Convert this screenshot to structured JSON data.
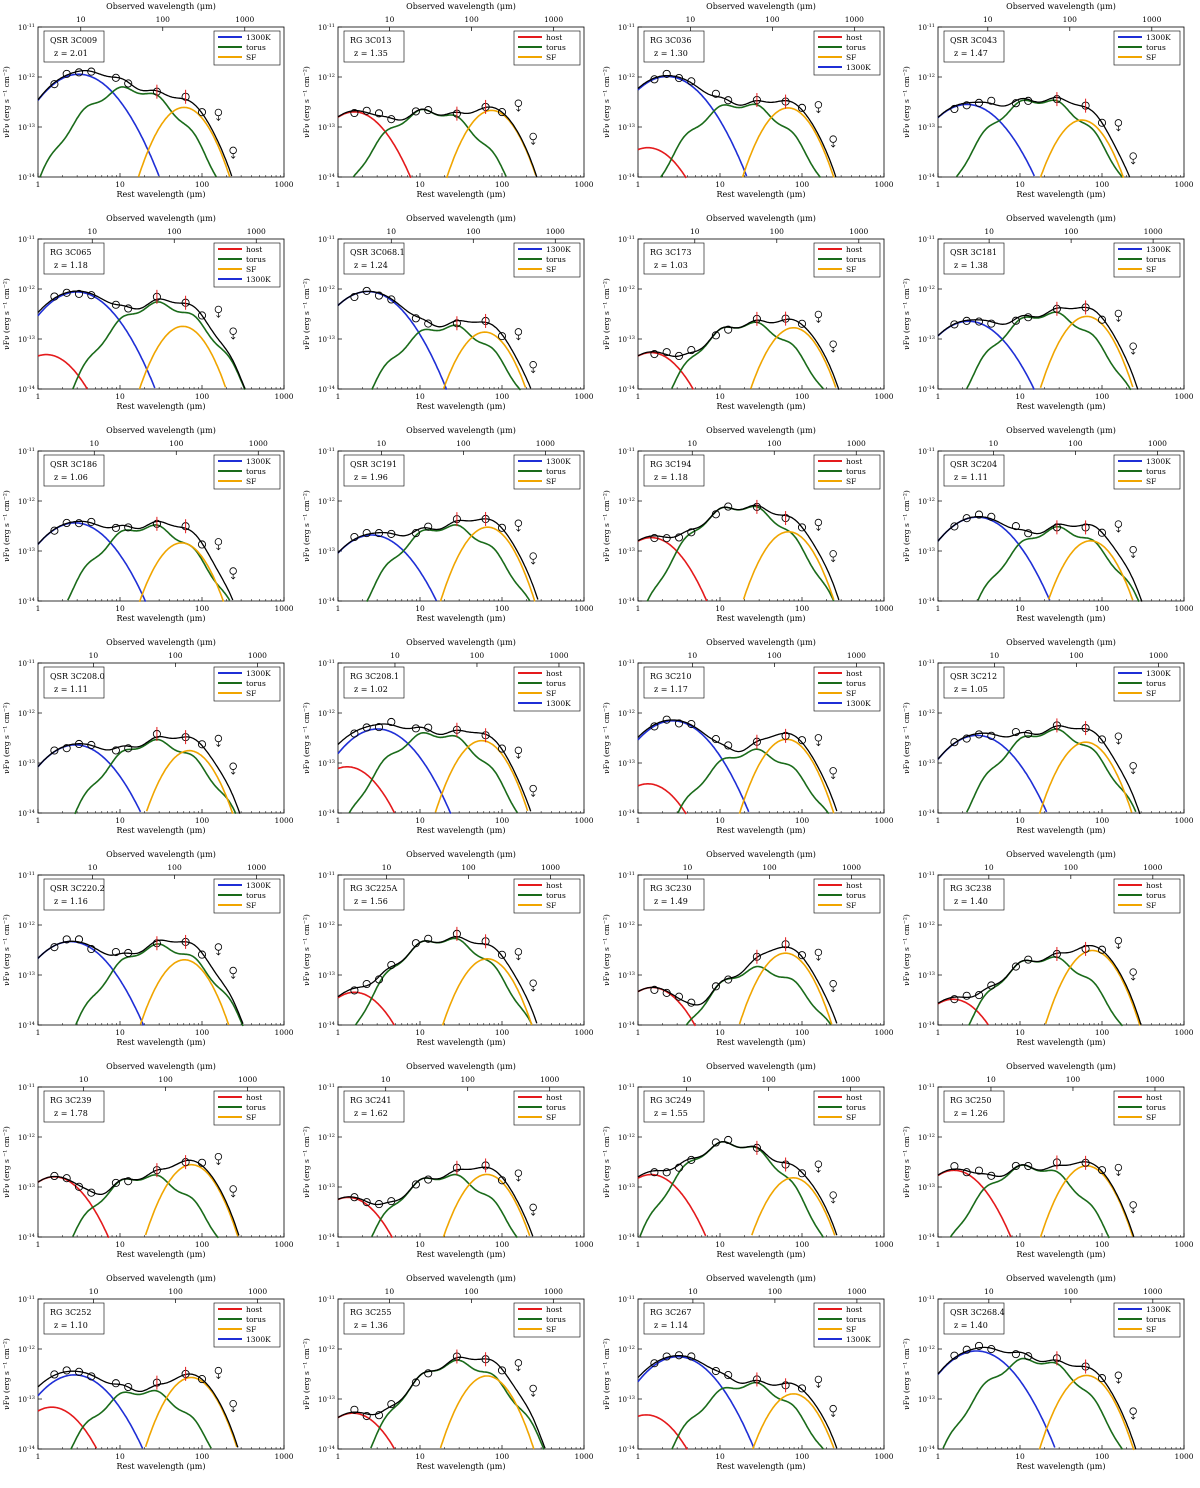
{
  "common": {
    "x_axis_top_label": "Observed wavelength (μm)",
    "x_axis_bottom_label": "Rest wavelength (μm)",
    "y_axis_label": "νF",
    "y_axis_label_sub": "ν",
    "y_axis_label_units": " (erg s",
    "y_axis_label_units2": " cm",
    "y_axis_label_close": ")",
    "rest_ticks": [
      "1",
      "10",
      "100",
      "1000"
    ],
    "obs_ticks": [
      "10",
      "100",
      "1000"
    ],
    "y_tick_base": "10",
    "y_tick_exps": [
      "-11",
      "-12",
      "-13",
      "-14"
    ],
    "colors": {
      "host": "#e41a1c",
      "torus": "#1a6b1a",
      "SF": "#f0a500",
      "1300K": "#1f2fd6",
      "total": "#000000",
      "data": "#000000",
      "data_highlight": "#e41a1c"
    }
  },
  "chart_data": [
    {
      "type": "line",
      "object": "QSR 3C009",
      "z": "z = 2.01",
      "legend": [
        "1300K",
        "torus",
        "SF"
      ],
      "xlim": [
        1,
        1000
      ],
      "ylim": [
        1e-14,
        1e-11
      ]
    },
    {
      "type": "line",
      "object": "RG 3C013",
      "z": "z = 1.35",
      "legend": [
        "host",
        "torus",
        "SF"
      ],
      "xlim": [
        1,
        1000
      ],
      "ylim": [
        1e-14,
        1e-11
      ]
    },
    {
      "type": "line",
      "object": "RG 3C036",
      "z": "z = 1.30",
      "legend": [
        "host",
        "torus",
        "SF",
        "1300K"
      ],
      "xlim": [
        1,
        1000
      ],
      "ylim": [
        1e-14,
        1e-11
      ]
    },
    {
      "type": "line",
      "object": "QSR 3C043",
      "z": "z = 1.47",
      "legend": [
        "1300K",
        "torus",
        "SF"
      ],
      "xlim": [
        1,
        1000
      ],
      "ylim": [
        1e-14,
        1e-11
      ]
    },
    {
      "type": "line",
      "object": "RG 3C065",
      "z": "z = 1.18",
      "legend": [
        "host",
        "torus",
        "SF",
        "1300K"
      ],
      "xlim": [
        1,
        1000
      ],
      "ylim": [
        1e-14,
        1e-11
      ]
    },
    {
      "type": "line",
      "object": "QSR 3C068.1",
      "z": "z = 1.24",
      "legend": [
        "1300K",
        "torus",
        "SF"
      ],
      "xlim": [
        1,
        1000
      ],
      "ylim": [
        1e-14,
        1e-11
      ]
    },
    {
      "type": "line",
      "object": "RG 3C173",
      "z": "z = 1.03",
      "legend": [
        "host",
        "torus",
        "SF"
      ],
      "xlim": [
        1,
        1000
      ],
      "ylim": [
        1e-14,
        1e-11
      ]
    },
    {
      "type": "line",
      "object": "QSR 3C181",
      "z": "z = 1.38",
      "legend": [
        "1300K",
        "torus",
        "SF"
      ],
      "xlim": [
        1,
        1000
      ],
      "ylim": [
        1e-14,
        1e-11
      ]
    },
    {
      "type": "line",
      "object": "QSR 3C186",
      "z": "z = 1.06",
      "legend": [
        "1300K",
        "torus",
        "SF"
      ],
      "xlim": [
        1,
        1000
      ],
      "ylim": [
        1e-14,
        1e-11
      ]
    },
    {
      "type": "line",
      "object": "QSR 3C191",
      "z": "z = 1.96",
      "legend": [
        "1300K",
        "torus",
        "SF"
      ],
      "xlim": [
        1,
        1000
      ],
      "ylim": [
        1e-14,
        1e-11
      ]
    },
    {
      "type": "line",
      "object": "RG 3C194",
      "z": "z = 1.18",
      "legend": [
        "host",
        "torus",
        "SF"
      ],
      "xlim": [
        1,
        1000
      ],
      "ylim": [
        1e-14,
        1e-11
      ]
    },
    {
      "type": "line",
      "object": "QSR 3C204",
      "z": "z = 1.11",
      "legend": [
        "1300K",
        "torus",
        "SF"
      ],
      "xlim": [
        1,
        1000
      ],
      "ylim": [
        1e-14,
        1e-11
      ]
    },
    {
      "type": "line",
      "object": "QSR 3C208.0",
      "z": "z = 1.11",
      "legend": [
        "1300K",
        "torus",
        "SF"
      ],
      "xlim": [
        1,
        1000
      ],
      "ylim": [
        1e-14,
        1e-11
      ]
    },
    {
      "type": "line",
      "object": "RG 3C208.1",
      "z": "z = 1.02",
      "legend": [
        "host",
        "torus",
        "SF",
        "1300K"
      ],
      "xlim": [
        1,
        1000
      ],
      "ylim": [
        1e-14,
        1e-11
      ]
    },
    {
      "type": "line",
      "object": "RG 3C210",
      "z": "z = 1.17",
      "legend": [
        "host",
        "torus",
        "SF",
        "1300K"
      ],
      "xlim": [
        1,
        1000
      ],
      "ylim": [
        1e-14,
        1e-11
      ]
    },
    {
      "type": "line",
      "object": "QSR 3C212",
      "z": "z = 1.05",
      "legend": [
        "1300K",
        "torus",
        "SF"
      ],
      "xlim": [
        1,
        1000
      ],
      "ylim": [
        1e-14,
        1e-11
      ]
    },
    {
      "type": "line",
      "object": "QSR 3C220.2",
      "z": "z = 1.16",
      "legend": [
        "1300K",
        "torus",
        "SF"
      ],
      "xlim": [
        1,
        1000
      ],
      "ylim": [
        1e-14,
        1e-11
      ]
    },
    {
      "type": "line",
      "object": "RG 3C225A",
      "z": "z = 1.56",
      "legend": [
        "host",
        "torus",
        "SF"
      ],
      "xlim": [
        1,
        1000
      ],
      "ylim": [
        1e-14,
        1e-11
      ]
    },
    {
      "type": "line",
      "object": "RG 3C230",
      "z": "z = 1.49",
      "legend": [
        "host",
        "torus",
        "SF"
      ],
      "xlim": [
        1,
        1000
      ],
      "ylim": [
        1e-14,
        1e-11
      ]
    },
    {
      "type": "line",
      "object": "RG 3C238",
      "z": "z = 1.40",
      "legend": [
        "host",
        "torus",
        "SF"
      ],
      "xlim": [
        1,
        1000
      ],
      "ylim": [
        1e-14,
        1e-11
      ]
    },
    {
      "type": "line",
      "object": "RG 3C239",
      "z": "z = 1.78",
      "legend": [
        "host",
        "torus",
        "SF"
      ],
      "xlim": [
        1,
        1000
      ],
      "ylim": [
        1e-14,
        1e-11
      ]
    },
    {
      "type": "line",
      "object": "RG 3C241",
      "z": "z = 1.62",
      "legend": [
        "host",
        "torus",
        "SF"
      ],
      "xlim": [
        1,
        1000
      ],
      "ylim": [
        1e-14,
        1e-11
      ]
    },
    {
      "type": "line",
      "object": "RG 3C249",
      "z": "z = 1.55",
      "legend": [
        "host",
        "torus",
        "SF"
      ],
      "xlim": [
        1,
        1000
      ],
      "ylim": [
        1e-14,
        1e-11
      ]
    },
    {
      "type": "line",
      "object": "RG 3C250",
      "z": "z = 1.26",
      "legend": [
        "host",
        "torus",
        "SF"
      ],
      "xlim": [
        1,
        1000
      ],
      "ylim": [
        1e-14,
        1e-11
      ]
    },
    {
      "type": "line",
      "object": "RG 3C252",
      "z": "z = 1.10",
      "legend": [
        "host",
        "torus",
        "SF",
        "1300K"
      ],
      "xlim": [
        1,
        1000
      ],
      "ylim": [
        1e-14,
        1e-11
      ]
    },
    {
      "type": "line",
      "object": "RG 3C255",
      "z": "z = 1.36",
      "legend": [
        "host",
        "torus",
        "SF"
      ],
      "xlim": [
        1,
        1000
      ],
      "ylim": [
        1e-14,
        1e-11
      ]
    },
    {
      "type": "line",
      "object": "RG 3C267",
      "z": "z = 1.14",
      "legend": [
        "host",
        "torus",
        "SF",
        "1300K"
      ],
      "xlim": [
        1,
        1000
      ],
      "ylim": [
        1e-14,
        1e-11
      ]
    },
    {
      "type": "line",
      "object": "QSR 3C268.4",
      "z": "z = 1.40",
      "legend": [
        "1300K",
        "torus",
        "SF"
      ],
      "xlim": [
        1,
        1000
      ],
      "ylim": [
        1e-14,
        1e-11
      ]
    }
  ]
}
